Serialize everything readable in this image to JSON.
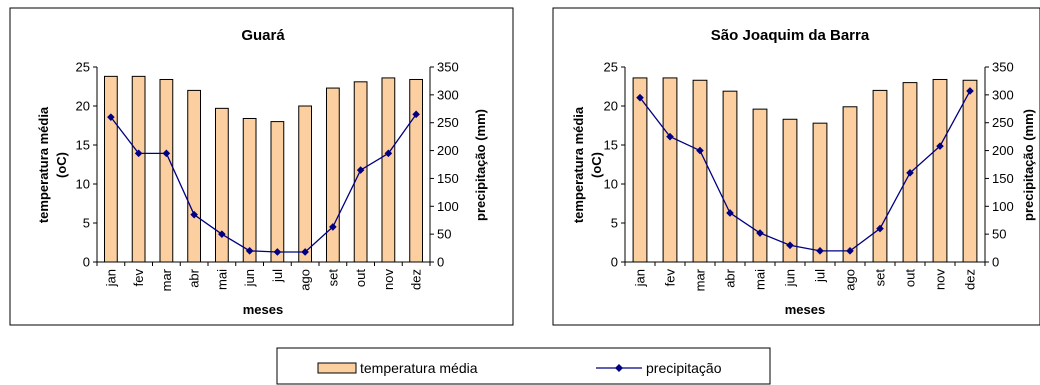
{
  "chart_data": [
    {
      "type": "bar",
      "title": "Guará",
      "xlabel": "meses",
      "ylabel": "temperatura média (oC)",
      "ylabel_lines": [
        "temperatura média",
        "(oC)"
      ],
      "y2label": "precipitação (mm)",
      "categories": [
        "jan",
        "fev",
        "mar",
        "abr",
        "mai",
        "jun",
        "jul",
        "ago",
        "set",
        "out",
        "nov",
        "dez"
      ],
      "ylim": [
        0,
        25
      ],
      "yticks": [
        0,
        5,
        10,
        15,
        20,
        25
      ],
      "y2lim": [
        0,
        350
      ],
      "y2ticks": [
        0,
        50,
        100,
        150,
        200,
        250,
        300,
        350
      ],
      "grid": false,
      "series": [
        {
          "name": "temperatura média",
          "type": "bar",
          "axis": "left",
          "values": [
            23.8,
            23.8,
            23.4,
            22.0,
            19.7,
            18.4,
            18.0,
            20.0,
            22.3,
            23.1,
            23.6,
            23.4
          ]
        },
        {
          "name": "precipitação",
          "type": "line",
          "axis": "right",
          "values": [
            260,
            195,
            195,
            85,
            50,
            20,
            18,
            18,
            63,
            165,
            195,
            265
          ]
        }
      ]
    },
    {
      "type": "bar",
      "title": "São Joaquim da Barra",
      "xlabel": "meses",
      "ylabel": "temperatura média (oC)",
      "ylabel_lines": [
        "temperatura média",
        "(oC)"
      ],
      "y2label": "precipitação (mm)",
      "categories": [
        "jan",
        "fev",
        "mar",
        "abr",
        "mai",
        "jun",
        "jul",
        "ago",
        "set",
        "out",
        "nov",
        "dez"
      ],
      "ylim": [
        0,
        25
      ],
      "yticks": [
        0,
        5,
        10,
        15,
        20,
        25
      ],
      "y2lim": [
        0,
        350
      ],
      "y2ticks": [
        0,
        50,
        100,
        150,
        200,
        250,
        300,
        350
      ],
      "grid": false,
      "series": [
        {
          "name": "temperatura média",
          "type": "bar",
          "axis": "left",
          "values": [
            23.6,
            23.6,
            23.3,
            21.9,
            19.6,
            18.3,
            17.8,
            19.9,
            22.0,
            23.0,
            23.4,
            23.3
          ]
        },
        {
          "name": "precipitação",
          "type": "line",
          "axis": "right",
          "values": [
            295,
            225,
            200,
            88,
            52,
            30,
            20,
            20,
            60,
            160,
            208,
            307
          ]
        }
      ]
    }
  ],
  "legend": {
    "placement": "bottom-center",
    "items": [
      {
        "label": "temperatura média",
        "kind": "bar"
      },
      {
        "label": "precipitação",
        "kind": "line"
      }
    ]
  },
  "colors": {
    "bar_fill": "#FBCFA0",
    "bar_stroke": "#000000",
    "line": "#000080",
    "frame": "#000000",
    "background": "#FFFFFF"
  }
}
